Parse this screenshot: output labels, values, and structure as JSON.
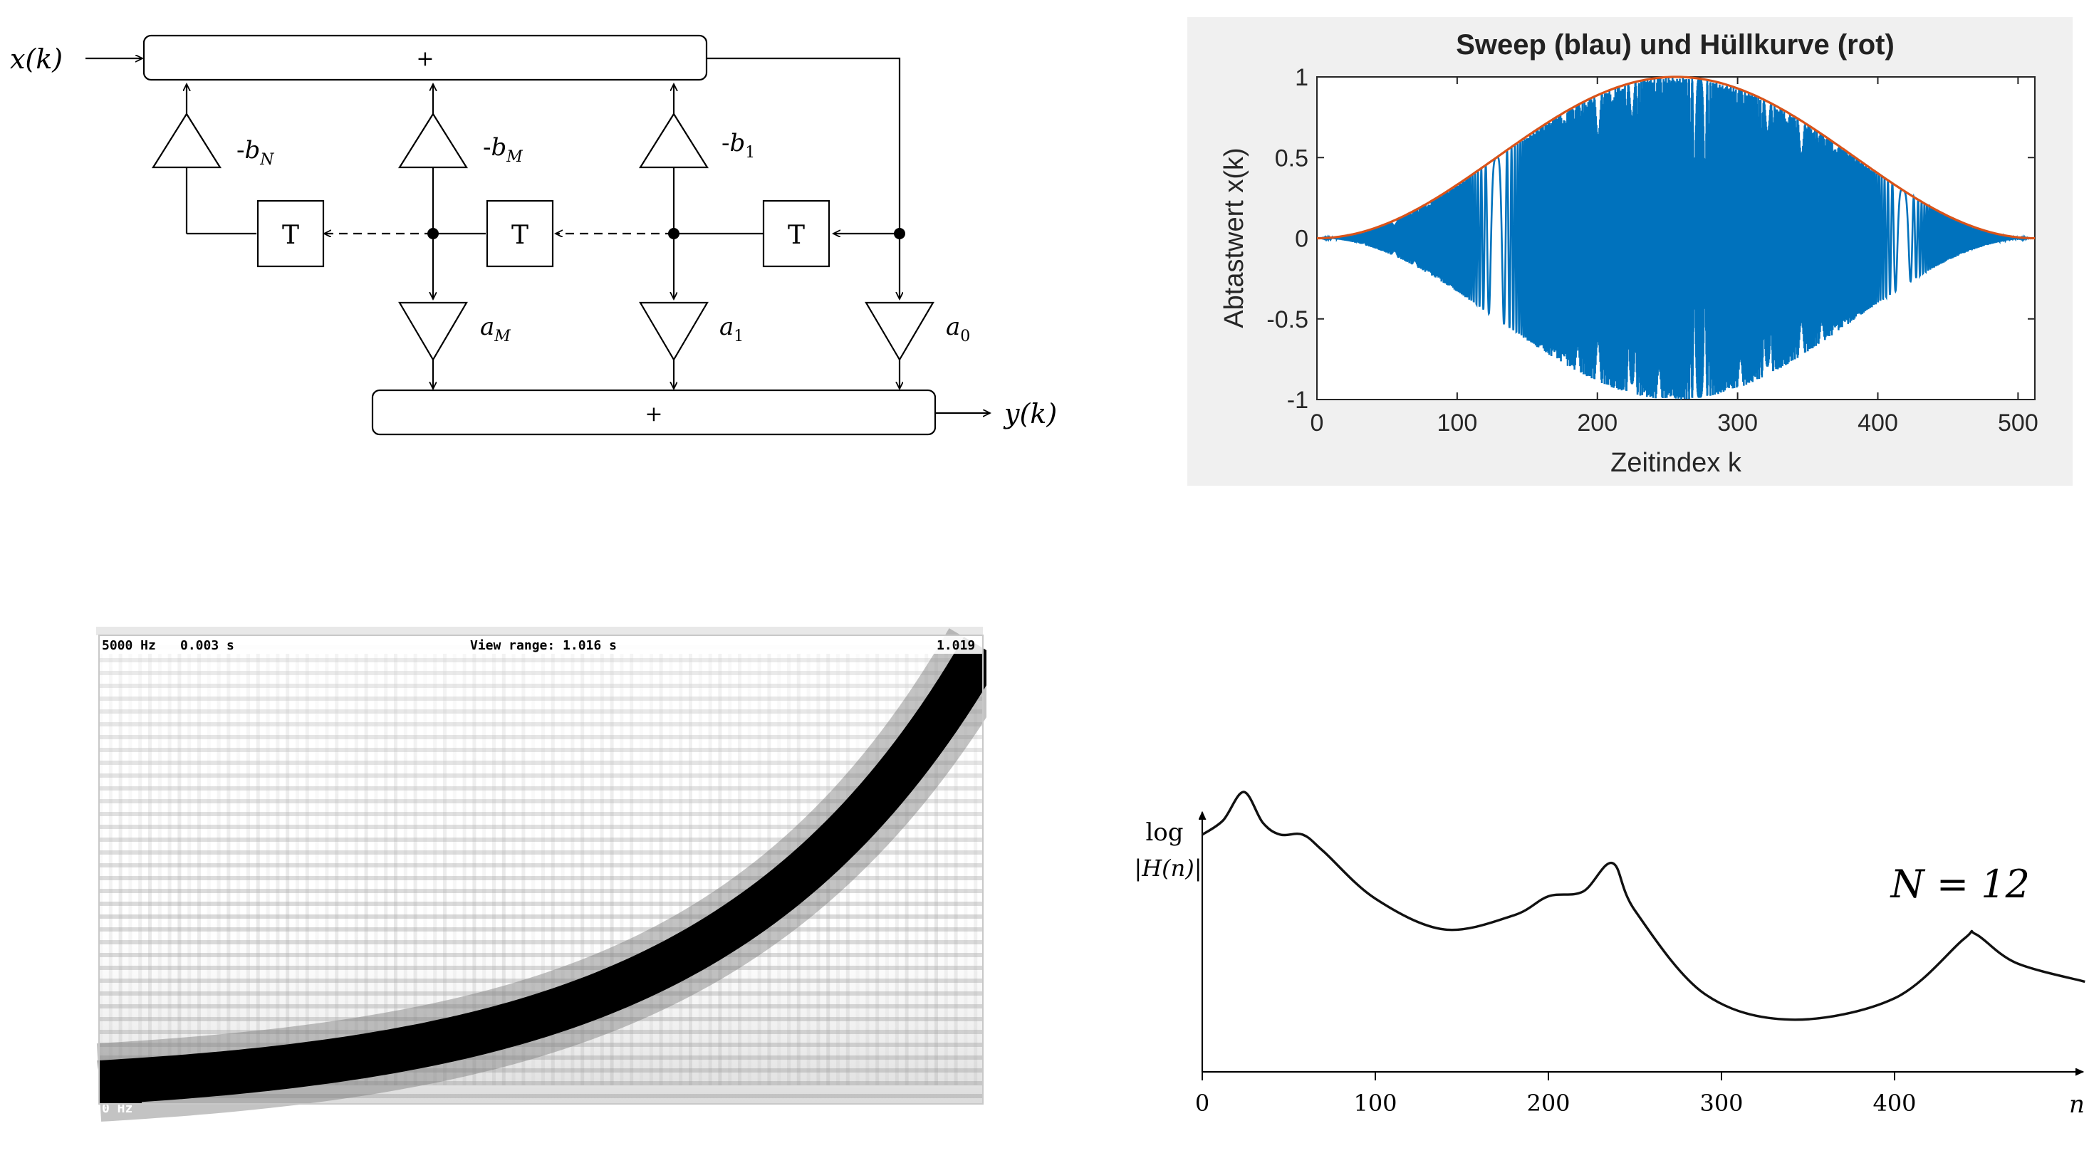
{
  "diagram": {
    "input_label": "x(k)",
    "output_label": "y(k)",
    "adder_top": "+",
    "adder_bottom": "+",
    "delay_label": "T",
    "feedback": [
      {
        "sign": "-",
        "base": "b",
        "sub": "N"
      },
      {
        "sign": "-",
        "base": "b",
        "sub": "M"
      },
      {
        "sign": "-",
        "base": "b",
        "sub": "1"
      }
    ],
    "feedforward": [
      {
        "base": "a",
        "sub": "M"
      },
      {
        "base": "a",
        "sub": "1"
      },
      {
        "base": "a",
        "sub": "0"
      }
    ]
  },
  "sweep": {
    "title": "Sweep (blau) und Hüllkurve (rot)",
    "xlabel": "Zeitindex k",
    "ylabel": "Abtastwert x(k)",
    "x_ticks": [
      "0",
      "100",
      "200",
      "300",
      "400",
      "500"
    ],
    "y_ticks": [
      "1",
      "0.5",
      "0",
      "-0.5",
      "-1"
    ],
    "colors": {
      "sweep": "#1f77c4",
      "envelope": "#e0501e",
      "background": "#f0f0f0"
    }
  },
  "spectrogram": {
    "freq_top": "5000 Hz",
    "time_start": "0.003 s",
    "view_range": "View range: 1.016 s",
    "time_end": "1.019",
    "freq_bottom": "0 Hz"
  },
  "response": {
    "ylabel_line1": "log",
    "ylabel_line2": "|H(n)|",
    "xlabel": "n",
    "x_ticks": [
      "0",
      "100",
      "200",
      "300",
      "400"
    ],
    "annotation": "N = 12"
  },
  "chart_data": [
    {
      "type": "line",
      "title": "Sweep (blau) und Hüllkurve (rot)",
      "xlabel": "Zeitindex k",
      "ylabel": "Abtastwert x(k)",
      "xlim": [
        0,
        512
      ],
      "ylim": [
        -1,
        1
      ],
      "grid": false,
      "series": [
        {
          "name": "Sweep (blau)",
          "x": [
            0,
            64,
            100,
            128,
            158,
            190,
            256,
            320,
            400,
            512
          ],
          "y": [
            0,
            0.04,
            0.2,
            0.5,
            -0.67,
            0.85,
            1.0,
            0.85,
            0.4,
            0
          ]
        },
        {
          "name": "Hüllkurve (rot)",
          "x": [
            0,
            64,
            128,
            192,
            256,
            320,
            384,
            448,
            512
          ],
          "y": [
            0,
            0.146,
            0.5,
            0.854,
            1.0,
            0.854,
            0.5,
            0.146,
            0
          ]
        }
      ]
    },
    {
      "type": "line",
      "xlabel": "n",
      "ylabel": "log |H(n)|",
      "xlim": [
        0,
        510
      ],
      "series": [
        {
          "x": [
            0,
            12,
            24,
            35,
            45,
            58,
            70,
            100,
            140,
            180,
            200,
            220,
            237,
            250,
            290,
            340,
            400,
            440,
            447,
            470,
            510
          ],
          "y": [
            0.82,
            0.88,
            1.0,
            0.87,
            0.82,
            0.82,
            0.75,
            0.55,
            0.42,
            0.48,
            0.56,
            0.58,
            0.7,
            0.5,
            0.15,
            0.04,
            0.13,
            0.38,
            0.4,
            0.28,
            0.2
          ]
        }
      ]
    }
  ]
}
